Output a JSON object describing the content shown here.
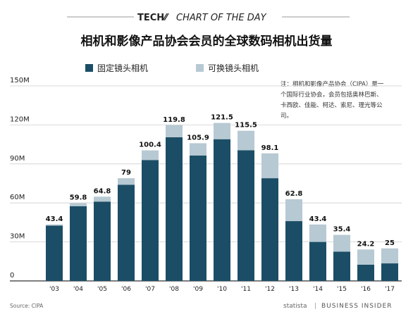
{
  "header": {
    "brand": "TECH",
    "brand_suffix": "CHART OF THE DAY"
  },
  "title": "相机和影像产品协会会员的全球数码相机出货量",
  "legend": [
    {
      "label": "固定镜头相机",
      "color": "#1b4e66"
    },
    {
      "label": "可换镜头相机",
      "color": "#b7c9d3"
    }
  ],
  "note": {
    "lines": [
      "注：相机和影像产品协会（CIPA）是一",
      "个国际行业协会，会员包括奥林巴斯、",
      "卡西欧、佳能、柯达、索尼、理光等公",
      "司。"
    ]
  },
  "footer": {
    "source": "Source: CIPA",
    "credit_statista": "statista",
    "credit_bi": "BUSINESS INSIDER"
  },
  "chart_data": {
    "type": "bar",
    "stacked": true,
    "categories": [
      "'03",
      "'04",
      "'05",
      "'06",
      "'07",
      "'08",
      "'09",
      "'10",
      "'11",
      "'12",
      "'13",
      "'14",
      "'15",
      "'16",
      "'17"
    ],
    "totals": [
      43.4,
      59.8,
      64.8,
      79,
      100.4,
      119.8,
      105.9,
      121.5,
      115.5,
      98.1,
      62.8,
      43.4,
      35.4,
      24.2,
      25
    ],
    "total_labels": [
      "43.4",
      "59.8",
      "64.8",
      "79",
      "100.4",
      "119.8",
      "105.9",
      "121.5",
      "115.5",
      "98.1",
      "62.8",
      "43.4",
      "35.4",
      "24.2",
      "25"
    ],
    "series": [
      {
        "name": "固定镜头相机",
        "values": [
          42.5,
          57.5,
          61.0,
          74.0,
          93.0,
          110.5,
          96.5,
          109.0,
          100.5,
          79.0,
          46.0,
          30.0,
          22.5,
          12.5,
          13.5
        ]
      },
      {
        "name": "可换镜头相机",
        "values": [
          0.9,
          2.3,
          3.8,
          5.0,
          7.4,
          9.3,
          9.4,
          12.5,
          15.0,
          19.1,
          16.8,
          13.4,
          12.9,
          11.7,
          11.5
        ]
      }
    ],
    "ylim": [
      0,
      150
    ],
    "yticks": [
      0,
      30,
      60,
      90,
      120,
      150
    ],
    "ytick_labels": [
      "0",
      "30M",
      "60M",
      "90M",
      "120M",
      "150M"
    ],
    "grid": true,
    "legend_position": "top-left"
  }
}
